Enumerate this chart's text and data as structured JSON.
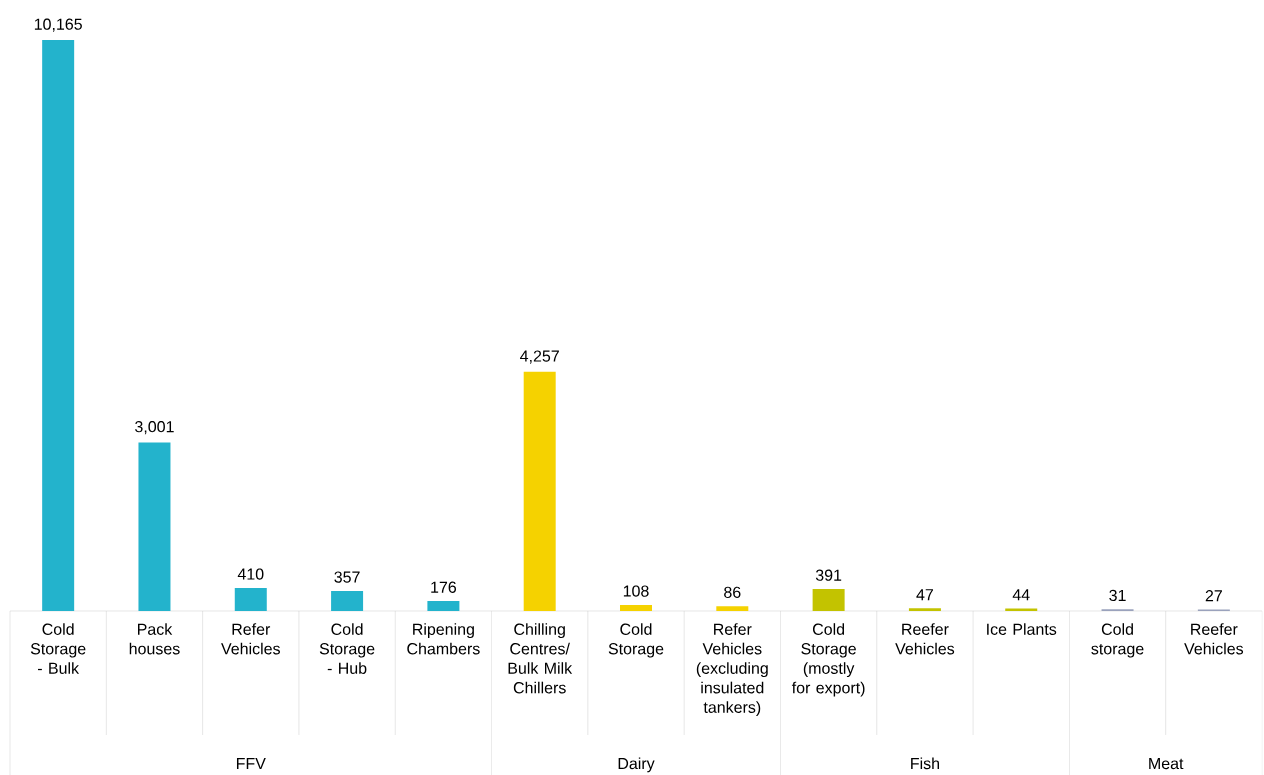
{
  "chart_data": {
    "type": "bar",
    "categories": [
      "Cold Storage - Bulk",
      "Pack houses",
      "Refer Vehicles",
      "Cold Storage - Hub",
      "Ripening Chambers",
      "Chilling Centres/ Bulk Milk Chillers",
      "Cold Storage",
      "Refer Vehicles (excluding insulated tankers)",
      "Cold Storage (mostly for export)",
      "Reefer Vehicles",
      "Ice Plants",
      "Cold storage",
      "Reefer Vehicles"
    ],
    "values": [
      10165,
      3001,
      410,
      357,
      176,
      4257,
      108,
      86,
      391,
      47,
      44,
      31,
      27
    ],
    "colors": [
      "#23b3cc",
      "#23b3cc",
      "#23b3cc",
      "#23b3cc",
      "#23b3cc",
      "#f5d200",
      "#f5d200",
      "#f5d200",
      "#c3c300",
      "#c3c300",
      "#c3c300",
      "#9aa2bc",
      "#9aa2bc"
    ],
    "value_labels": [
      "10,165",
      "3,001",
      "410",
      "357",
      "176",
      "4,257",
      "108",
      "86",
      "391",
      "47",
      "44",
      "31",
      "27"
    ],
    "annotations": [
      "FFV",
      "Dairy",
      "Fish",
      "Meat"
    ]
  }
}
